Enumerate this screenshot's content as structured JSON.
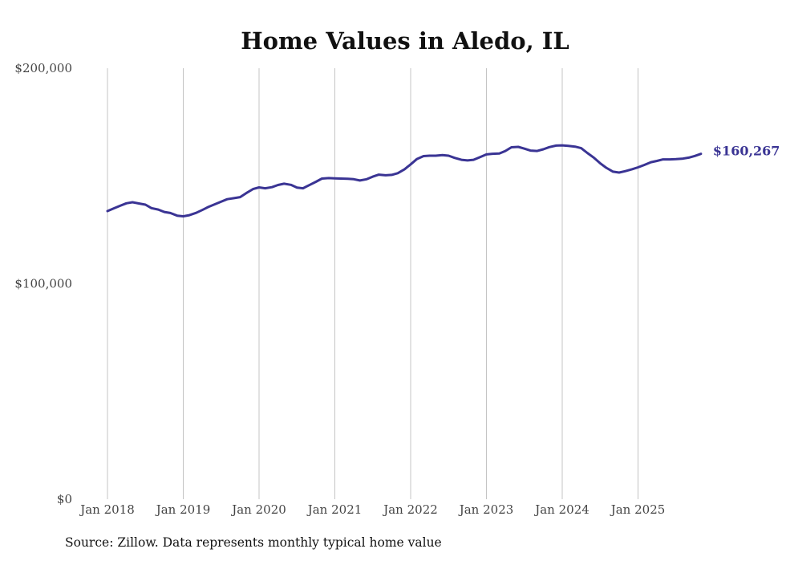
{
  "chart_data": {
    "type": "line",
    "title": "Home Values in Aledo, IL",
    "xlabel": "",
    "ylabel": "",
    "ylim": [
      0,
      200000
    ],
    "y_ticks": [
      {
        "value": 0,
        "label": "$0"
      },
      {
        "value": 100000,
        "label": "$100,000"
      },
      {
        "value": 200000,
        "label": "$200,000"
      }
    ],
    "x_ticks": [
      {
        "value": 2018,
        "label": "Jan 2018"
      },
      {
        "value": 2019,
        "label": "Jan 2019"
      },
      {
        "value": 2020,
        "label": "Jan 2020"
      },
      {
        "value": 2021,
        "label": "Jan 2021"
      },
      {
        "value": 2022,
        "label": "Jan 2022"
      },
      {
        "value": 2023,
        "label": "Jan 2023"
      },
      {
        "value": 2024,
        "label": "Jan 2024"
      },
      {
        "value": 2025,
        "label": "Jan 2025"
      }
    ],
    "grid": "vertical",
    "series": [
      {
        "name": "Typical home value",
        "color": "#3a3494",
        "end_label": "$160,267",
        "points": [
          [
            2018.0,
            133700
          ],
          [
            2018.08,
            134900
          ],
          [
            2018.17,
            136200
          ],
          [
            2018.25,
            137300
          ],
          [
            2018.33,
            137800
          ],
          [
            2018.42,
            137200
          ],
          [
            2018.5,
            136700
          ],
          [
            2018.58,
            135100
          ],
          [
            2018.67,
            134400
          ],
          [
            2018.75,
            133300
          ],
          [
            2018.83,
            132800
          ],
          [
            2018.92,
            131600
          ],
          [
            2019.0,
            131300
          ],
          [
            2019.08,
            131800
          ],
          [
            2019.17,
            132900
          ],
          [
            2019.25,
            134200
          ],
          [
            2019.33,
            135600
          ],
          [
            2019.42,
            136900
          ],
          [
            2019.5,
            138100
          ],
          [
            2019.58,
            139200
          ],
          [
            2019.67,
            139700
          ],
          [
            2019.75,
            140200
          ],
          [
            2019.83,
            142000
          ],
          [
            2019.92,
            143900
          ],
          [
            2020.0,
            144700
          ],
          [
            2020.08,
            144300
          ],
          [
            2020.17,
            144800
          ],
          [
            2020.25,
            145800
          ],
          [
            2020.33,
            146400
          ],
          [
            2020.42,
            145900
          ],
          [
            2020.5,
            144600
          ],
          [
            2020.58,
            144300
          ],
          [
            2020.67,
            145900
          ],
          [
            2020.75,
            147300
          ],
          [
            2020.83,
            148800
          ],
          [
            2020.92,
            149000
          ],
          [
            2021.0,
            148900
          ],
          [
            2021.08,
            148800
          ],
          [
            2021.17,
            148700
          ],
          [
            2021.25,
            148500
          ],
          [
            2021.33,
            147900
          ],
          [
            2021.42,
            148500
          ],
          [
            2021.5,
            149700
          ],
          [
            2021.58,
            150600
          ],
          [
            2021.67,
            150300
          ],
          [
            2021.75,
            150500
          ],
          [
            2021.83,
            151300
          ],
          [
            2021.92,
            153100
          ],
          [
            2022.0,
            155400
          ],
          [
            2022.08,
            157800
          ],
          [
            2022.17,
            159200
          ],
          [
            2022.25,
            159400
          ],
          [
            2022.33,
            159400
          ],
          [
            2022.42,
            159700
          ],
          [
            2022.5,
            159400
          ],
          [
            2022.58,
            158400
          ],
          [
            2022.67,
            157500
          ],
          [
            2022.75,
            157200
          ],
          [
            2022.83,
            157500
          ],
          [
            2022.92,
            158800
          ],
          [
            2023.0,
            160000
          ],
          [
            2023.08,
            160300
          ],
          [
            2023.17,
            160400
          ],
          [
            2023.25,
            161600
          ],
          [
            2023.33,
            163300
          ],
          [
            2023.42,
            163500
          ],
          [
            2023.5,
            162700
          ],
          [
            2023.58,
            161800
          ],
          [
            2023.67,
            161600
          ],
          [
            2023.75,
            162400
          ],
          [
            2023.83,
            163400
          ],
          [
            2023.92,
            164100
          ],
          [
            2024.0,
            164200
          ],
          [
            2024.08,
            164000
          ],
          [
            2024.17,
            163600
          ],
          [
            2024.25,
            162900
          ],
          [
            2024.33,
            160700
          ],
          [
            2024.42,
            158400
          ],
          [
            2024.5,
            155900
          ],
          [
            2024.58,
            153800
          ],
          [
            2024.67,
            152000
          ],
          [
            2024.75,
            151600
          ],
          [
            2024.83,
            152200
          ],
          [
            2024.92,
            153100
          ],
          [
            2025.0,
            154000
          ],
          [
            2025.08,
            155100
          ],
          [
            2025.17,
            156400
          ],
          [
            2025.25,
            157000
          ],
          [
            2025.33,
            157700
          ],
          [
            2025.42,
            157700
          ],
          [
            2025.5,
            157800
          ],
          [
            2025.58,
            158000
          ],
          [
            2025.67,
            158500
          ],
          [
            2025.75,
            159300
          ],
          [
            2025.83,
            160267
          ]
        ]
      }
    ]
  },
  "footer": {
    "source": "Source: Zillow. Data represents monthly typical home value"
  }
}
